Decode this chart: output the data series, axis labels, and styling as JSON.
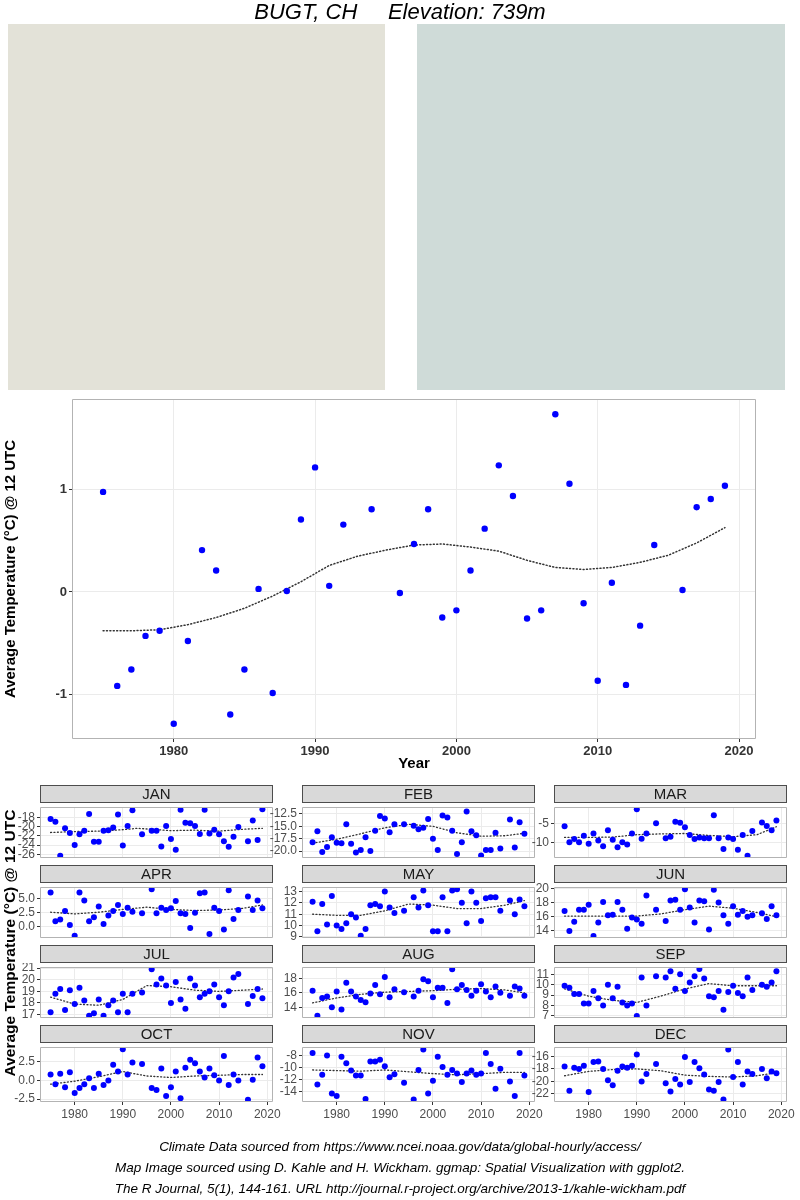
{
  "chart_data": [
    {
      "type": "scatter",
      "title": "BUGT, CH     Elevation: 739m",
      "xlabel": "Year",
      "ylabel": "Average Temperature (°C) @ 12 UTC",
      "annotations": [
        "Climate Data sourced from https://www.ncei.noaa.gov/data/global-hourly/access/",
        "Map Image sourced using D. Kahle and H. Wickham. ggmap: Spatial Visualization with ggplot2.",
        "The R Journal, 5(1), 144-161. URL http://journal.r-project.org/archive/2013-1/kahle-wickham.pdf"
      ],
      "x": [
        1975,
        1976,
        1977,
        1978,
        1979,
        1980,
        1981,
        1982,
        1983,
        1984,
        1985,
        1986,
        1987,
        1988,
        1989,
        1990,
        1991,
        1992,
        1994,
        1996,
        1997,
        1998,
        1999,
        2000,
        2001,
        2002,
        2003,
        2004,
        2005,
        2006,
        2007,
        2008,
        2009,
        2010,
        2011,
        2012,
        2013,
        2014,
        2016,
        2017,
        2018,
        2019
      ],
      "series": [
        {
          "type": "scatter",
          "color": "#0000ff",
          "marker": "circle",
          "values": [
            0.98,
            -0.92,
            -0.76,
            -0.43,
            -0.38,
            -1.29,
            -0.48,
            0.41,
            0.21,
            -1.2,
            -0.76,
            0.03,
            -0.99,
            0.01,
            0.71,
            1.22,
            0.06,
            0.66,
            0.81,
            -0.01,
            0.47,
            0.81,
            -0.25,
            -0.18,
            0.21,
            0.62,
            1.24,
            0.94,
            -0.26,
            -0.18,
            1.74,
            1.06,
            -0.11,
            -0.87,
            0.09,
            -0.91,
            -0.33,
            0.46,
            0.02,
            0.83,
            0.91,
            1.04
          ]
        },
        {
          "type": "line",
          "color": "#333333",
          "line_style": "dotted",
          "marker": "none",
          "x": [
            1975,
            1977,
            1979,
            1981,
            1983,
            1985,
            1987,
            1989,
            1991,
            1993,
            1995,
            1997,
            1999,
            2001,
            2003,
            2005,
            2007,
            2009,
            2011,
            2013,
            2015,
            2017,
            2019
          ],
          "values": [
            -0.38,
            -0.38,
            -0.37,
            -0.32,
            -0.25,
            -0.16,
            -0.04,
            0.1,
            0.26,
            0.35,
            0.41,
            0.46,
            0.47,
            0.44,
            0.4,
            0.31,
            0.24,
            0.22,
            0.24,
            0.29,
            0.36,
            0.48,
            0.63
          ]
        }
      ],
      "xlim": [
        1972.8,
        2021.2
      ],
      "xticks": [
        1980,
        1990,
        2000,
        2010,
        2020
      ],
      "ylim": [
        -1.44,
        1.89
      ],
      "yticks": [
        -1,
        0,
        1
      ],
      "grid": true
    },
    {
      "type": "scatter",
      "title": "JAN",
      "ylabel": "Average Temperature (°C) @ 12 UTC",
      "x": [
        1975,
        1976,
        1977,
        1978,
        1979,
        1980,
        1981,
        1982,
        1983,
        1984,
        1985,
        1986,
        1987,
        1988,
        1989,
        1990,
        1991,
        1992,
        1994,
        1996,
        1997,
        1998,
        1999,
        2000,
        2001,
        2002,
        2003,
        2004,
        2005,
        2006,
        2007,
        2008,
        2009,
        2010,
        2011,
        2012,
        2013,
        2014,
        2016,
        2017,
        2018,
        2019
      ],
      "series": [
        {
          "type": "scatter",
          "color": "#0000ff",
          "marker": "circle",
          "values": [
            -18.4,
            -19.0,
            -26.3,
            -20.4,
            -21.4,
            -24.0,
            -21.7,
            -20.9,
            -17.3,
            -23.3,
            -23.3,
            -20.9,
            -20.8,
            -20.2,
            -17.4,
            -24.1,
            -19.9,
            -16.5,
            -21.7,
            -20.9,
            -20.9,
            -24.3,
            -19.9,
            -22.7,
            -25.0,
            -16.4,
            -19.2,
            -19.3,
            -19.9,
            -21.6,
            -16.4,
            -21.5,
            -20.7,
            -21.7,
            -23.2,
            -24.4,
            -22.2,
            -20.1,
            -23.2,
            -18.7,
            -22.9,
            -16.3
          ]
        },
        {
          "type": "line",
          "color": "#333333",
          "line_style": "dotted",
          "marker": "none",
          "x": [
            1975,
            1980,
            1985,
            1990,
            1993,
            2000,
            2005,
            2010,
            2015,
            2019
          ],
          "values": [
            -21.3,
            -21.1,
            -21.0,
            -20.7,
            -20.4,
            -20.9,
            -20.8,
            -21.0,
            -20.6,
            -20.4
          ]
        }
      ],
      "xlim": [
        1972.8,
        2021.2
      ],
      "xticks": [
        1980,
        1990,
        2000,
        2010,
        2020
      ],
      "ylim": [
        -26.8,
        -15.8
      ],
      "yticks": [
        -26,
        -24,
        -22,
        -20,
        -18
      ],
      "grid": true,
      "tick_labels": "y"
    },
    {
      "type": "scatter",
      "title": "FEB",
      "x": [
        1975,
        1976,
        1977,
        1978,
        1979,
        1980,
        1981,
        1982,
        1983,
        1984,
        1985,
        1986,
        1987,
        1988,
        1989,
        1990,
        1991,
        1992,
        1994,
        1996,
        1997,
        1998,
        1999,
        2000,
        2001,
        2002,
        2003,
        2004,
        2005,
        2006,
        2007,
        2008,
        2009,
        2010,
        2011,
        2012,
        2013,
        2014,
        2016,
        2017,
        2018,
        2019
      ],
      "series": [
        {
          "type": "scatter",
          "color": "#0000ff",
          "marker": "circle",
          "values": [
            -18.2,
            -16.0,
            -20.2,
            -19.2,
            -17.2,
            -18.3,
            -18.4,
            -14.6,
            -18.5,
            -20.3,
            -19.8,
            -17.2,
            -20.0,
            -15.9,
            -12.9,
            -13.4,
            -16.2,
            -14.6,
            -14.6,
            -14.9,
            -15.6,
            -15.3,
            -13.5,
            -17.5,
            -19.8,
            -12.8,
            -13.2,
            -15.9,
            -20.6,
            -18.2,
            -12.0,
            -16.0,
            -16.8,
            -20.9,
            -19.8,
            -19.8,
            -16.3,
            -19.5,
            -13.6,
            -19.3,
            -14.2,
            -16.5
          ]
        },
        {
          "type": "line",
          "color": "#333333",
          "line_style": "dotted",
          "marker": "none",
          "x": [
            1975,
            1980,
            1985,
            1990,
            1995,
            2000,
            2005,
            2010,
            2015,
            2019
          ],
          "values": [
            -18.4,
            -17.6,
            -16.5,
            -15.3,
            -14.6,
            -15.0,
            -16.3,
            -17.0,
            -16.9,
            -16.4
          ]
        }
      ],
      "xlim": [
        1972.8,
        2021.2
      ],
      "xticks": [
        1980,
        1990,
        2000,
        2010,
        2020
      ],
      "ylim": [
        -21.4,
        -11.1
      ],
      "yticks": [
        {
          "value": -20,
          "label": "-20.0"
        },
        -17.5,
        {
          "value": -15,
          "label": "-15.0"
        },
        -12.5
      ],
      "grid": true,
      "tick_labels": "y"
    },
    {
      "type": "scatter",
      "title": "MAR",
      "x": [
        1975,
        1976,
        1977,
        1978,
        1979,
        1980,
        1981,
        1982,
        1983,
        1984,
        1985,
        1986,
        1987,
        1988,
        1989,
        1990,
        1991,
        1992,
        1994,
        1996,
        1997,
        1998,
        1999,
        2000,
        2001,
        2002,
        2003,
        2004,
        2005,
        2006,
        2007,
        2008,
        2009,
        2010,
        2011,
        2012,
        2013,
        2014,
        2016,
        2017,
        2018,
        2019
      ],
      "series": [
        {
          "type": "scatter",
          "color": "#0000ff",
          "marker": "circle",
          "values": [
            -5.8,
            -9.8,
            -9.0,
            -9.8,
            -8.2,
            -10.2,
            -7.6,
            -9.4,
            -10.8,
            -6.8,
            -9.2,
            -11.1,
            -9.8,
            -10.4,
            -7.6,
            -1.5,
            -8.9,
            -7.6,
            -5.0,
            -8.8,
            -8.4,
            -4.6,
            -4.9,
            -6.0,
            -8.0,
            -9.0,
            -8.6,
            -8.8,
            -8.8,
            -3.0,
            -8.8,
            -11.5,
            -8.6,
            -9.0,
            -11.7,
            -8.0,
            -13.2,
            -7.0,
            -4.8,
            -5.7,
            -6.8,
            -4.3
          ]
        },
        {
          "type": "line",
          "color": "#333333",
          "line_style": "dotted",
          "marker": "none",
          "x": [
            1975,
            1980,
            1985,
            1990,
            1995,
            2000,
            2005,
            2010,
            2015,
            2019
          ],
          "values": [
            -8.6,
            -8.6,
            -8.5,
            -7.9,
            -7.7,
            -7.6,
            -8.1,
            -8.4,
            -7.9,
            -5.9
          ]
        }
      ],
      "xlim": [
        1972.8,
        2021.2
      ],
      "xticks": [
        1980,
        1990,
        2000,
        2010,
        2020
      ],
      "ylim": [
        -13.8,
        -0.9
      ],
      "yticks": [
        -10,
        -5
      ],
      "grid": true,
      "tick_labels": "y"
    },
    {
      "type": "scatter",
      "title": "APR",
      "x": [
        1975,
        1976,
        1977,
        1978,
        1979,
        1980,
        1981,
        1982,
        1983,
        1984,
        1985,
        1986,
        1987,
        1988,
        1989,
        1990,
        1991,
        1992,
        1994,
        1996,
        1997,
        1998,
        1999,
        2000,
        2001,
        2002,
        2003,
        2004,
        2005,
        2006,
        2007,
        2008,
        2009,
        2010,
        2011,
        2012,
        2013,
        2014,
        2016,
        2017,
        2018,
        2019
      ],
      "series": [
        {
          "type": "scatter",
          "color": "#0000ff",
          "marker": "circle",
          "values": [
            6.0,
            0.9,
            1.2,
            2.7,
            0.2,
            -1.7,
            6.0,
            4.6,
            0.9,
            1.6,
            3.5,
            0.4,
            1.9,
            2.7,
            3.8,
            2.2,
            3.3,
            2.6,
            2.3,
            6.6,
            2.3,
            3.3,
            2.9,
            3.2,
            4.5,
            2.3,
            2.2,
            -0.3,
            2.4,
            5.9,
            6.0,
            -1.4,
            3.3,
            2.7,
            -0.6,
            6.4,
            1.3,
            2.9,
            5.3,
            2.9,
            4.6,
            3.2
          ]
        },
        {
          "type": "line",
          "color": "#333333",
          "line_style": "dotted",
          "marker": "none",
          "x": [
            1975,
            1980,
            1985,
            1990,
            1995,
            2000,
            2005,
            2010,
            2015,
            2019
          ],
          "values": [
            2.5,
            2.2,
            2.5,
            3.0,
            3.4,
            3.0,
            2.8,
            2.9,
            3.2,
            3.8
          ]
        }
      ],
      "xlim": [
        1972.8,
        2021.2
      ],
      "xticks": [
        1980,
        1990,
        2000,
        2010,
        2020
      ],
      "ylim": [
        -2.1,
        7.0
      ],
      "yticks": [
        {
          "value": 0,
          "label": "0.0"
        },
        2.5,
        {
          "value": 5,
          "label": "5.0"
        }
      ],
      "grid": true,
      "tick_labels": "y"
    },
    {
      "type": "scatter",
      "title": "MAY",
      "x": [
        1975,
        1976,
        1977,
        1978,
        1979,
        1980,
        1981,
        1982,
        1983,
        1984,
        1985,
        1986,
        1987,
        1988,
        1989,
        1990,
        1991,
        1992,
        1994,
        1996,
        1997,
        1998,
        1999,
        2000,
        2001,
        2002,
        2003,
        2004,
        2005,
        2006,
        2007,
        2008,
        2009,
        2010,
        2011,
        2012,
        2013,
        2014,
        2016,
        2017,
        2018,
        2019
      ],
      "series": [
        {
          "type": "scatter",
          "color": "#0000ff",
          "marker": "circle",
          "values": [
            12.1,
            9.5,
            11.9,
            10.1,
            12.6,
            10.0,
            9.7,
            10.2,
            11.0,
            10.7,
            9.1,
            9.7,
            11.8,
            11.9,
            11.7,
            13.0,
            11.6,
            11.1,
            11.3,
            12.5,
            11.6,
            13.1,
            11.8,
            9.5,
            9.5,
            12.5,
            9.5,
            13.1,
            13.2,
            12.0,
            10.2,
            13.0,
            12.0,
            10.4,
            12.4,
            12.5,
            12.5,
            11.3,
            12.2,
            11.0,
            12.3,
            11.7
          ]
        },
        {
          "type": "line",
          "color": "#333333",
          "line_style": "dotted",
          "marker": "none",
          "x": [
            1975,
            1980,
            1985,
            1990,
            1995,
            2000,
            2005,
            2010,
            2015,
            2019
          ],
          "values": [
            11.0,
            10.9,
            10.9,
            11.3,
            11.9,
            11.8,
            11.5,
            11.5,
            11.8,
            12.2
          ]
        }
      ],
      "xlim": [
        1972.8,
        2021.2
      ],
      "xticks": [
        1980,
        1990,
        2000,
        2010,
        2020
      ],
      "ylim": [
        8.9,
        13.4
      ],
      "yticks": [
        9,
        10,
        11,
        12,
        13
      ],
      "grid": true,
      "tick_labels": "y"
    },
    {
      "type": "scatter",
      "title": "JUN",
      "x": [
        1975,
        1976,
        1977,
        1978,
        1979,
        1980,
        1981,
        1982,
        1983,
        1984,
        1985,
        1986,
        1987,
        1988,
        1989,
        1990,
        1991,
        1992,
        1994,
        1996,
        1997,
        1998,
        1999,
        2000,
        2001,
        2002,
        2003,
        2004,
        2005,
        2006,
        2007,
        2008,
        2009,
        2010,
        2011,
        2012,
        2013,
        2014,
        2016,
        2017,
        2018,
        2019
      ],
      "series": [
        {
          "type": "scatter",
          "color": "#0000ff",
          "marker": "circle",
          "values": [
            16.8,
            14.0,
            15.3,
            17.0,
            17.0,
            17.7,
            13.3,
            15.2,
            18.1,
            16.2,
            16.3,
            18.1,
            17.0,
            14.3,
            15.9,
            15.6,
            15.0,
            19.0,
            17.0,
            15.4,
            18.3,
            18.4,
            17.0,
            19.9,
            17.3,
            15.2,
            18.3,
            18.2,
            14.2,
            19.8,
            18.0,
            16.2,
            15.0,
            17.5,
            16.3,
            16.8,
            16.0,
            16.2,
            16.5,
            15.7,
            17.5,
            16.2
          ]
        },
        {
          "type": "line",
          "color": "#333333",
          "line_style": "dotted",
          "marker": "none",
          "x": [
            1975,
            1980,
            1985,
            1990,
            1995,
            2000,
            2005,
            2010,
            2015,
            2019
          ],
          "values": [
            16.1,
            16.1,
            16.1,
            16.1,
            16.4,
            17.0,
            17.5,
            17.2,
            16.6,
            16.0
          ]
        }
      ],
      "xlim": [
        1972.8,
        2021.2
      ],
      "xticks": [
        1980,
        1990,
        2000,
        2010,
        2020
      ],
      "ylim": [
        13.0,
        20.2
      ],
      "yticks": [
        14,
        16,
        18,
        20
      ],
      "grid": true,
      "tick_labels": "y"
    },
    {
      "type": "scatter",
      "title": "JUL",
      "x": [
        1975,
        1976,
        1977,
        1978,
        1979,
        1980,
        1981,
        1982,
        1983,
        1984,
        1985,
        1986,
        1987,
        1988,
        1989,
        1990,
        1991,
        1992,
        1994,
        1996,
        1997,
        1998,
        1999,
        2000,
        2001,
        2002,
        2003,
        2004,
        2005,
        2006,
        2007,
        2008,
        2009,
        2010,
        2011,
        2012,
        2013,
        2014,
        2016,
        2017,
        2018,
        2019
      ],
      "series": [
        {
          "type": "scatter",
          "color": "#0000ff",
          "marker": "circle",
          "values": [
            17.2,
            18.8,
            19.2,
            17.4,
            19.1,
            17.9,
            19.3,
            18.2,
            16.9,
            17.1,
            18.3,
            16.9,
            17.8,
            18.2,
            17.2,
            18.8,
            17.2,
            18.8,
            18.9,
            20.9,
            19.6,
            20.1,
            19.5,
            18.0,
            19.8,
            18.3,
            17.5,
            20.1,
            19.5,
            18.5,
            18.8,
            19.0,
            19.6,
            18.5,
            17.8,
            19.0,
            20.2,
            20.5,
            17.9,
            18.6,
            19.2,
            18.4
          ]
        },
        {
          "type": "line",
          "color": "#333333",
          "line_style": "dotted",
          "marker": "none",
          "x": [
            1975,
            1980,
            1985,
            1990,
            1995,
            2000,
            2005,
            2010,
            2015,
            2019
          ],
          "values": [
            18.5,
            17.9,
            17.8,
            18.3,
            19.5,
            19.4,
            19.1,
            19.0,
            19.1,
            19.2
          ]
        }
      ],
      "xlim": [
        1972.8,
        2021.2
      ],
      "xticks": [
        1980,
        1990,
        2000,
        2010,
        2020
      ],
      "ylim": [
        16.7,
        21.1
      ],
      "yticks": [
        17,
        18,
        19,
        20,
        21
      ],
      "grid": true,
      "tick_labels": "y"
    },
    {
      "type": "scatter",
      "title": "AUG",
      "x": [
        1975,
        1976,
        1977,
        1978,
        1979,
        1980,
        1981,
        1982,
        1983,
        1984,
        1985,
        1986,
        1987,
        1988,
        1989,
        1990,
        1991,
        1992,
        1994,
        1996,
        1997,
        1998,
        1999,
        2000,
        2001,
        2002,
        2003,
        2004,
        2005,
        2006,
        2007,
        2008,
        2009,
        2010,
        2011,
        2012,
        2013,
        2014,
        2016,
        2017,
        2018,
        2019
      ],
      "series": [
        {
          "type": "scatter",
          "color": "#0000ff",
          "marker": "circle",
          "values": [
            16.3,
            12.8,
            15.3,
            15.5,
            14.0,
            16.2,
            13.7,
            17.4,
            16.2,
            15.5,
            15.0,
            14.7,
            15.9,
            17.1,
            15.8,
            18.2,
            15.4,
            16.5,
            16.1,
            15.5,
            16.3,
            17.9,
            17.6,
            15.4,
            16.7,
            16.7,
            14.6,
            19.3,
            16.5,
            17.1,
            16.4,
            15.6,
            16.3,
            17.2,
            16.2,
            15.4,
            16.9,
            16.0,
            15.6,
            16.9,
            16.6,
            15.6
          ]
        },
        {
          "type": "line",
          "color": "#333333",
          "line_style": "dotted",
          "marker": "none",
          "x": [
            1975,
            1980,
            1985,
            1990,
            1995,
            2000,
            2005,
            2010,
            2015,
            2019
          ],
          "values": [
            14.6,
            15.3,
            15.8,
            16.1,
            16.2,
            16.3,
            16.5,
            16.6,
            16.4,
            16.0
          ]
        }
      ],
      "xlim": [
        1972.8,
        2021.2
      ],
      "xticks": [
        1980,
        1990,
        2000,
        2010,
        2020
      ],
      "ylim": [
        12.5,
        19.6
      ],
      "yticks": [
        14,
        16,
        18
      ],
      "grid": true,
      "tick_labels": "y"
    },
    {
      "type": "scatter",
      "title": "SEP",
      "x": [
        1975,
        1976,
        1977,
        1978,
        1979,
        1980,
        1981,
        1982,
        1983,
        1984,
        1985,
        1986,
        1987,
        1988,
        1989,
        1990,
        1991,
        1992,
        1994,
        1996,
        1997,
        1998,
        1999,
        2000,
        2001,
        2002,
        2003,
        2004,
        2005,
        2006,
        2007,
        2008,
        2009,
        2010,
        2011,
        2012,
        2013,
        2014,
        2016,
        2017,
        2018,
        2019
      ],
      "series": [
        {
          "type": "scatter",
          "color": "#0000ff",
          "marker": "circle",
          "values": [
            9.9,
            9.7,
            9.1,
            9.1,
            8.2,
            8.2,
            9.4,
            8.7,
            8.0,
            10.0,
            8.7,
            9.8,
            8.3,
            8.0,
            8.2,
            7.0,
            10.7,
            8.0,
            10.8,
            10.7,
            11.3,
            9.6,
            11.0,
            9.4,
            10.2,
            10.8,
            11.5,
            10.6,
            8.9,
            8.8,
            9.4,
            7.6,
            9.3,
            9.9,
            9.2,
            8.9,
            10.7,
            9.5,
            10.0,
            9.8,
            10.2,
            11.3
          ]
        },
        {
          "type": "line",
          "color": "#333333",
          "line_style": "dotted",
          "marker": "none",
          "x": [
            1975,
            1980,
            1985,
            1990,
            1995,
            2000,
            2005,
            2010,
            2015,
            2019
          ],
          "values": [
            9.6,
            8.9,
            8.5,
            8.3,
            8.9,
            9.6,
            10.1,
            9.9,
            9.9,
            9.9
          ]
        }
      ],
      "xlim": [
        1972.8,
        2021.2
      ],
      "xticks": [
        1980,
        1990,
        2000,
        2010,
        2020
      ],
      "ylim": [
        6.8,
        11.7
      ],
      "yticks": [
        7,
        8,
        9,
        10,
        11
      ],
      "grid": true,
      "tick_labels": "y"
    },
    {
      "type": "scatter",
      "title": "OCT",
      "x": [
        1975,
        1976,
        1977,
        1978,
        1979,
        1980,
        1981,
        1982,
        1983,
        1984,
        1985,
        1986,
        1987,
        1988,
        1989,
        1990,
        1991,
        1992,
        1994,
        1996,
        1997,
        1998,
        1999,
        2000,
        2001,
        2002,
        2003,
        2004,
        2005,
        2006,
        2007,
        2008,
        2009,
        2010,
        2011,
        2012,
        2013,
        2014,
        2016,
        2017,
        2018,
        2019
      ],
      "series": [
        {
          "type": "scatter",
          "color": "#0000ff",
          "marker": "circle",
          "values": [
            0.8,
            -0.5,
            0.9,
            -0.9,
            1.1,
            -1.7,
            -1.0,
            -0.5,
            0.3,
            -1.0,
            0.9,
            -0.6,
            0.0,
            2.1,
            1.2,
            4.2,
            0.8,
            2.4,
            2.2,
            -1.0,
            -1.3,
            1.6,
            -2.1,
            -0.9,
            1.2,
            -2.4,
            1.7,
            2.8,
            2.3,
            1.2,
            0.4,
            1.6,
            0.7,
            0.0,
            3.3,
            -0.6,
            0.8,
            0.0,
            -2.6,
            0.1,
            3.1,
            1.9
          ]
        },
        {
          "type": "line",
          "color": "#333333",
          "line_style": "dotted",
          "marker": "none",
          "x": [
            1975,
            1980,
            1985,
            1990,
            1995,
            2000,
            2005,
            2010,
            2015,
            2019
          ],
          "values": [
            -0.5,
            -0.1,
            0.5,
            1.2,
            0.6,
            0.4,
            0.6,
            0.7,
            0.8,
            0.8
          ]
        }
      ],
      "xlim": [
        1972.8,
        2021.2
      ],
      "xticks": [
        1980,
        1990,
        2000,
        2010,
        2020
      ],
      "ylim": [
        -2.9,
        4.5
      ],
      "yticks": [
        -2.5,
        {
          "value": 0,
          "label": "0.0"
        },
        2.5
      ],
      "grid": true
    },
    {
      "type": "scatter",
      "title": "NOV",
      "x": [
        1975,
        1976,
        1977,
        1978,
        1979,
        1980,
        1981,
        1982,
        1983,
        1984,
        1985,
        1986,
        1987,
        1988,
        1989,
        1990,
        1991,
        1992,
        1994,
        1996,
        1997,
        1998,
        1999,
        2000,
        2001,
        2002,
        2003,
        2004,
        2005,
        2006,
        2007,
        2008,
        2009,
        2010,
        2011,
        2012,
        2013,
        2014,
        2016,
        2017,
        2018,
        2019
      ],
      "series": [
        {
          "type": "scatter",
          "color": "#0000ff",
          "marker": "circle",
          "values": [
            -7.6,
            -12.8,
            -11.2,
            -8.0,
            -14.3,
            -14.7,
            -8.2,
            -9.3,
            -10.5,
            -11.3,
            -11.3,
            -15.2,
            -9.0,
            -9.0,
            -8.7,
            -9.8,
            -11.6,
            -11.1,
            -12.5,
            -15.3,
            -10.4,
            -7.0,
            -14.3,
            -12.2,
            -8.2,
            -9.9,
            -11.2,
            -10.4,
            -11.0,
            -12.4,
            -11.0,
            -10.5,
            -11.2,
            -11.0,
            -7.6,
            -9.4,
            -13.5,
            -10.2,
            -12.3,
            -14.7,
            -7.6,
            -11.3
          ]
        },
        {
          "type": "line",
          "color": "#333333",
          "line_style": "dotted",
          "marker": "none",
          "x": [
            1975,
            1980,
            1985,
            1990,
            1995,
            2000,
            2005,
            2010,
            2015,
            2019
          ],
          "values": [
            -10.4,
            -10.5,
            -10.6,
            -10.4,
            -10.7,
            -11.0,
            -11.2,
            -11.0,
            -10.8,
            -10.8
          ]
        }
      ],
      "xlim": [
        1972.8,
        2021.2
      ],
      "xticks": [
        1980,
        1990,
        2000,
        2010,
        2020
      ],
      "ylim": [
        -15.7,
        -6.6
      ],
      "yticks": [
        -14,
        -12,
        -10,
        -8
      ],
      "grid": true
    },
    {
      "type": "scatter",
      "title": "DEC",
      "x": [
        1975,
        1976,
        1977,
        1978,
        1979,
        1980,
        1981,
        1982,
        1983,
        1984,
        1985,
        1986,
        1987,
        1988,
        1989,
        1990,
        1991,
        1992,
        1994,
        1996,
        1997,
        1998,
        1999,
        2000,
        2001,
        2002,
        2003,
        2004,
        2005,
        2006,
        2007,
        2008,
        2009,
        2010,
        2011,
        2012,
        2013,
        2014,
        2016,
        2017,
        2018,
        2019
      ],
      "series": [
        {
          "type": "scatter",
          "color": "#0000ff",
          "marker": "circle",
          "values": [
            -17.6,
            -21.5,
            -17.8,
            -18.0,
            -17.5,
            -21.7,
            -16.9,
            -16.8,
            -18.0,
            -19.8,
            -20.6,
            -18.3,
            -17.6,
            -17.8,
            -17.5,
            -15.7,
            -20.0,
            -18.8,
            -17.2,
            -20.3,
            -21.6,
            -19.6,
            -20.5,
            -16.1,
            -20.1,
            -16.9,
            -17.9,
            -18.9,
            -21.3,
            -21.5,
            -20.1,
            -22.9,
            -14.9,
            -19.3,
            -16.9,
            -20.5,
            -18.4,
            -18.8,
            -18.0,
            -19.5,
            -18.4,
            -18.7
          ]
        },
        {
          "type": "line",
          "color": "#333333",
          "line_style": "dotted",
          "marker": "none",
          "x": [
            1975,
            1980,
            1985,
            1990,
            1995,
            2000,
            2005,
            2010,
            2015,
            2019
          ],
          "values": [
            -19.1,
            -18.4,
            -18.1,
            -18.0,
            -18.3,
            -19.0,
            -19.2,
            -19.3,
            -19.1,
            -18.6
          ]
        }
      ],
      "xlim": [
        1972.8,
        2021.2
      ],
      "xticks": [
        1980,
        1990,
        2000,
        2010,
        2020
      ],
      "ylim": [
        -23.3,
        -14.5
      ],
      "yticks": [
        -22,
        -20,
        -18,
        -16
      ],
      "grid": true
    }
  ]
}
